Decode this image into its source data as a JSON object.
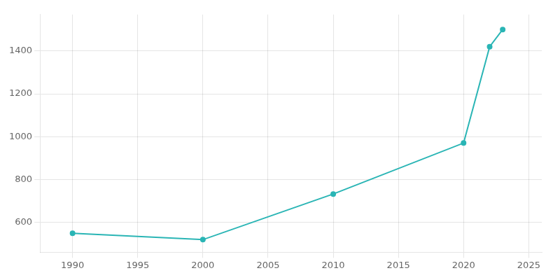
{
  "chart_data": {
    "type": "line",
    "x": [
      1990,
      2000,
      2010,
      2020,
      2022,
      2023
    ],
    "values": [
      549,
      519,
      732,
      970,
      1420,
      1500
    ],
    "color": "#2ab5b5",
    "marker": "circle",
    "xlim": [
      1987.5,
      2026
    ],
    "ylim": [
      460,
      1570
    ],
    "xticks": [
      1990,
      1995,
      2000,
      2005,
      2010,
      2015,
      2020,
      2025
    ],
    "yticks": [
      600,
      800,
      1000,
      1200,
      1400
    ],
    "grid": true
  }
}
